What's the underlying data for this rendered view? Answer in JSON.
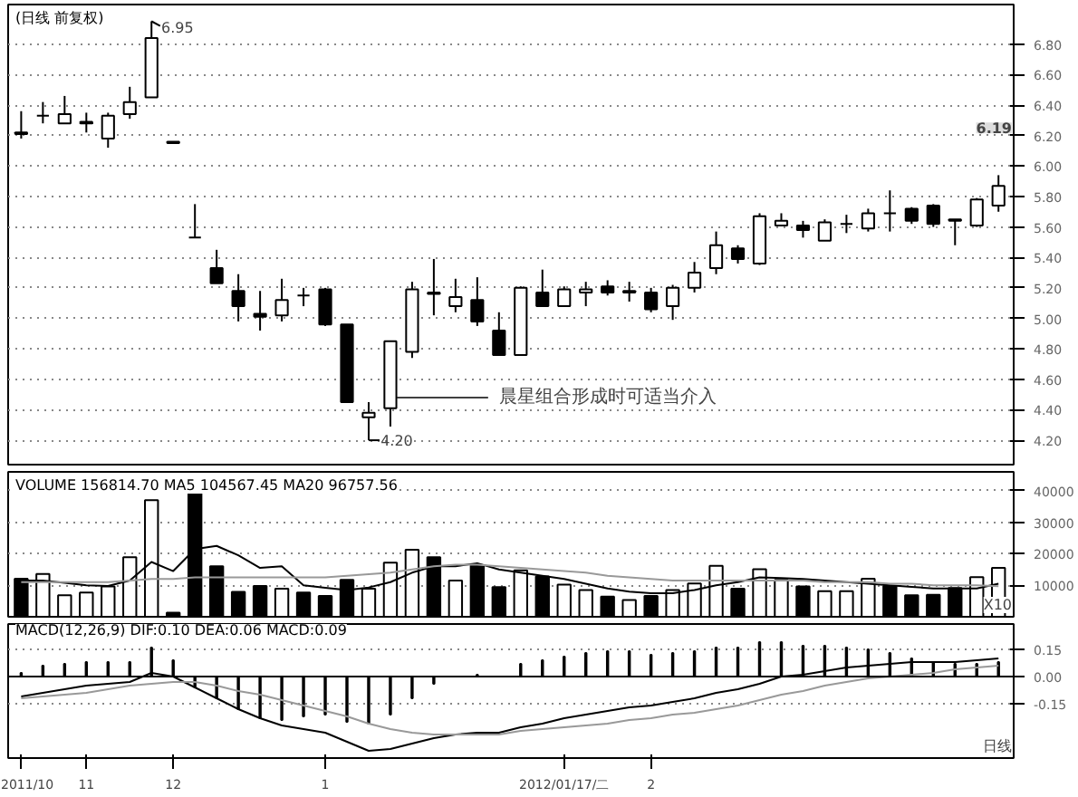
{
  "chart_data": [
    {
      "type": "candlestick",
      "title": "(日线 前复权)",
      "tick_labels": "y",
      "grid": "y",
      "ylim": [
        4.04,
        7.06
      ],
      "yticks": [
        {
          "value": 4.2,
          "label": "4.20"
        },
        {
          "value": 4.4,
          "label": "4.40"
        },
        {
          "value": 4.6,
          "label": "4.60"
        },
        {
          "value": 4.8,
          "label": "4.80"
        },
        {
          "value": 5,
          "label": "5.00"
        },
        {
          "value": 5.2,
          "label": "5.20"
        },
        {
          "value": 5.4,
          "label": "5.40"
        },
        {
          "value": 5.6,
          "label": "5.60"
        },
        {
          "value": 5.8,
          "label": "5.80"
        },
        {
          "value": 6,
          "label": "6.00"
        },
        {
          "value": 6.2,
          "label": "6.20"
        },
        {
          "value": 6.4,
          "label": "6.40"
        },
        {
          "value": 6.6,
          "label": "6.60"
        },
        {
          "value": 6.8,
          "label": "6.80"
        }
      ],
      "categories": [
        null,
        null,
        null,
        null,
        null,
        null,
        null,
        null,
        null,
        null,
        null,
        null,
        null,
        null,
        null,
        null,
        null,
        null,
        null,
        null,
        null,
        null,
        null,
        null,
        null,
        null,
        null,
        null,
        null,
        null,
        null,
        null,
        null,
        null,
        null,
        null,
        null,
        null,
        null,
        null,
        null,
        null,
        null,
        null,
        null,
        null
      ],
      "ohlc": [
        [
          6.22,
          6.36,
          6.18,
          6.21
        ],
        [
          6.33,
          6.42,
          6.28,
          6.33
        ],
        [
          6.28,
          6.46,
          6.28,
          6.34
        ],
        [
          6.28,
          6.35,
          6.22,
          6.29
        ],
        [
          6.18,
          6.35,
          6.12,
          6.33
        ],
        [
          6.34,
          6.52,
          6.31,
          6.42
        ],
        [
          6.45,
          6.95,
          6.45,
          6.84
        ],
        [
          6.16,
          6.16,
          6.15,
          6.15
        ],
        [
          5.53,
          5.75,
          5.53,
          5.53
        ],
        [
          5.33,
          5.45,
          5.23,
          5.23
        ],
        [
          5.18,
          5.29,
          4.98,
          5.08
        ],
        [
          5.03,
          5.18,
          4.92,
          5.01
        ],
        [
          5.02,
          5.26,
          4.98,
          5.12
        ],
        [
          5.15,
          5.2,
          5.08,
          5.15
        ],
        [
          5.19,
          5.2,
          4.95,
          4.96
        ],
        [
          4.96,
          4.96,
          4.45,
          4.45
        ],
        [
          4.35,
          4.45,
          4.2,
          4.38
        ],
        [
          4.41,
          4.85,
          4.29,
          4.85
        ],
        [
          4.78,
          5.24,
          4.74,
          5.19
        ],
        [
          5.17,
          5.39,
          5.02,
          5.16
        ],
        [
          5.08,
          5.26,
          5.04,
          5.14
        ],
        [
          5.12,
          5.27,
          4.95,
          4.98
        ],
        [
          4.92,
          5.04,
          4.76,
          4.76
        ],
        [
          4.76,
          5.21,
          4.76,
          5.2
        ],
        [
          5.17,
          5.32,
          5.08,
          5.08
        ],
        [
          5.08,
          5.21,
          5.08,
          5.19
        ],
        [
          5.17,
          5.24,
          5.08,
          5.19
        ],
        [
          5.21,
          5.25,
          5.15,
          5.17
        ],
        [
          5.17,
          5.24,
          5.11,
          5.18
        ],
        [
          5.17,
          5.2,
          5.04,
          5.06
        ],
        [
          5.08,
          5.22,
          4.99,
          5.2
        ],
        [
          5.2,
          5.37,
          5.17,
          5.3
        ],
        [
          5.33,
          5.57,
          5.29,
          5.48
        ],
        [
          5.46,
          5.48,
          5.36,
          5.39
        ],
        [
          5.36,
          5.69,
          5.35,
          5.67
        ],
        [
          5.61,
          5.69,
          5.61,
          5.64
        ],
        [
          5.61,
          5.64,
          5.53,
          5.58
        ],
        [
          5.51,
          5.65,
          5.51,
          5.63
        ],
        [
          5.62,
          5.68,
          5.56,
          5.62
        ],
        [
          5.59,
          5.72,
          5.57,
          5.69
        ],
        [
          5.69,
          5.84,
          5.57,
          5.69
        ],
        [
          5.72,
          5.73,
          5.62,
          5.64
        ],
        [
          5.74,
          5.75,
          5.6,
          5.62
        ],
        [
          5.65,
          5.65,
          5.48,
          5.64
        ],
        [
          5.61,
          5.79,
          5.6,
          5.78
        ],
        [
          5.74,
          5.94,
          5.7,
          5.87
        ]
      ],
      "colors": [
        "#000000",
        "#000000",
        "#ffffff",
        "#ffffff",
        "#ffffff",
        "#ffffff",
        "#ffffff",
        "#000000",
        "#000000",
        "#000000",
        "#000000",
        "#000000",
        "#ffffff",
        "#000000",
        "#000000",
        "#000000",
        "#ffffff",
        "#ffffff",
        "#ffffff",
        "#000000",
        "#ffffff",
        "#000000",
        "#000000",
        "#ffffff",
        "#000000",
        "#ffffff",
        "#ffffff",
        "#000000",
        "#ffffff",
        "#000000",
        "#ffffff",
        "#ffffff",
        "#ffffff",
        "#000000",
        "#ffffff",
        "#ffffff",
        "#000000",
        "#ffffff",
        "#000000",
        "#ffffff",
        "#000000",
        "#000000",
        "#000000",
        "#000000",
        "#ffffff",
        "#ffffff"
      ],
      "annotations": [
        "6.95",
        "4.20",
        "晨星组合形成时可适当介入",
        "6.19"
      ]
    },
    {
      "type": "bar",
      "title": "VOLUME 156814.70 MA5 104567.45 MA20 96757.56",
      "tick_labels": "y",
      "grid": "y",
      "ylim": [
        0,
        46000
      ],
      "yticks": [
        10000,
        20000,
        30000,
        40000
      ],
      "annotations": [
        "X10"
      ],
      "categories": [
        null,
        null,
        null,
        null,
        null,
        null,
        null,
        null,
        null,
        null,
        null,
        null,
        null,
        null,
        null,
        null,
        null,
        null,
        null,
        null,
        null,
        null,
        null,
        null,
        null,
        null,
        null,
        null,
        null,
        null,
        null,
        null,
        null,
        null,
        null,
        null,
        null,
        null,
        null,
        null,
        null,
        null,
        null,
        null,
        null,
        null
      ],
      "series": [
        {
          "type": "bar",
          "values": [
            12100,
            13600,
            6800,
            7700,
            9600,
            18900,
            37000,
            1300,
            39400,
            16000,
            7900,
            9800,
            8900,
            7700,
            6600,
            11700,
            8900,
            17200,
            21300,
            18900,
            11500,
            16400,
            9400,
            14700,
            12800,
            10200,
            8500,
            6400,
            5300,
            6600,
            8500,
            10600,
            16200,
            8900,
            15100,
            11700,
            9600,
            8100,
            8100,
            12100,
            9800,
            6800,
            7000,
            9100,
            12600,
            15500
          ],
          "colors": [
            "#000000",
            "#ffffff",
            "#ffffff",
            "#ffffff",
            "#ffffff",
            "#ffffff",
            "#ffffff",
            "#000000",
            "#000000",
            "#000000",
            "#000000",
            "#000000",
            "#ffffff",
            "#000000",
            "#000000",
            "#000000",
            "#ffffff",
            "#ffffff",
            "#ffffff",
            "#000000",
            "#ffffff",
            "#000000",
            "#000000",
            "#ffffff",
            "#000000",
            "#ffffff",
            "#ffffff",
            "#000000",
            "#ffffff",
            "#000000",
            "#ffffff",
            "#ffffff",
            "#ffffff",
            "#000000",
            "#ffffff",
            "#ffffff",
            "#000000",
            "#ffffff",
            "#ffffff",
            "#ffffff",
            "#000000",
            "#000000",
            "#000000",
            "#000000",
            "#ffffff",
            "#ffffff"
          ]
        },
        {
          "type": "line",
          "color": "#000000",
          "values": [
            11500,
            11500,
            10800,
            10000,
            9800,
            11500,
            17400,
            14500,
            21500,
            22500,
            19500,
            15500,
            16000,
            10000,
            9200,
            8500,
            9300,
            11000,
            14000,
            16000,
            16000,
            17000,
            15000,
            14000,
            13000,
            12000,
            10500,
            9000,
            8000,
            7500,
            7500,
            8500,
            10000,
            11000,
            12500,
            12300,
            12000,
            11500,
            11000,
            10500,
            10000,
            9500,
            9000,
            9000,
            9000,
            10500
          ]
        },
        {
          "type": "line",
          "color": "#999999",
          "values": [
            11000,
            11000,
            11000,
            11000,
            11000,
            11500,
            12000,
            12000,
            12500,
            12500,
            12500,
            12500,
            12500,
            12500,
            12500,
            13000,
            13500,
            14000,
            15000,
            16000,
            16500,
            16500,
            16000,
            15500,
            15000,
            14500,
            14000,
            13000,
            12500,
            12000,
            11500,
            11500,
            11500,
            11500,
            11500,
            11500,
            11500,
            11000,
            11000,
            11000,
            10500,
            10500,
            10000,
            10000,
            10000,
            9700
          ]
        }
      ]
    },
    {
      "type": "bar",
      "title": "MACD(12,26,9) DIF:0.10 DEA:0.06 MACD:0.09",
      "grid": "y",
      "ylim": [
        -0.45,
        0.29
      ],
      "yticks": [
        0.15,
        {
          "value": 0,
          "label": "0.00"
        },
        -0.15
      ],
      "annotations": [
        "日线"
      ],
      "categories": [
        "2011/10",
        null,
        null,
        "11",
        null,
        null,
        null,
        "12",
        null,
        null,
        null,
        null,
        null,
        null,
        "1",
        null,
        null,
        null,
        null,
        null,
        null,
        null,
        null,
        null,
        null,
        "2012/01/17/二",
        null,
        null,
        null,
        "2",
        null,
        null,
        null,
        null,
        null,
        null,
        null,
        null,
        null,
        null,
        null,
        null,
        null,
        null,
        null,
        null
      ],
      "series": [
        {
          "type": "bar",
          "color": "#000000",
          "values": [
            0.02,
            0.06,
            0.07,
            0.08,
            0.08,
            0.08,
            0.16,
            0.09,
            -0.06,
            -0.12,
            -0.18,
            -0.23,
            -0.24,
            -0.22,
            -0.21,
            -0.25,
            -0.26,
            -0.21,
            -0.12,
            -0.04,
            0,
            0.01,
            0,
            0.07,
            0.09,
            0.11,
            0.13,
            0.14,
            0.14,
            0.12,
            0.13,
            0.14,
            0.16,
            0.16,
            0.19,
            0.19,
            0.17,
            0.17,
            0.16,
            0.15,
            0.13,
            0.1,
            0.08,
            0.07,
            0.07,
            0.08
          ]
        },
        {
          "type": "line",
          "color": "#000000",
          "values": [
            -0.11,
            -0.09,
            -0.07,
            -0.05,
            -0.04,
            -0.03,
            0.02,
            0,
            -0.06,
            -0.12,
            -0.18,
            -0.23,
            -0.27,
            -0.29,
            -0.31,
            -0.36,
            -0.41,
            -0.4,
            -0.37,
            -0.34,
            -0.32,
            -0.31,
            -0.31,
            -0.28,
            -0.26,
            -0.23,
            -0.21,
            -0.19,
            -0.17,
            -0.16,
            -0.14,
            -0.12,
            -0.09,
            -0.07,
            -0.04,
            0,
            0.01,
            0.03,
            0.05,
            0.06,
            0.07,
            0.08,
            0.08,
            0.08,
            0.09,
            0.1
          ]
        },
        {
          "type": "line",
          "color": "#999999",
          "values": [
            -0.12,
            -0.11,
            -0.1,
            -0.09,
            -0.07,
            -0.05,
            -0.04,
            -0.03,
            -0.03,
            -0.05,
            -0.08,
            -0.1,
            -0.13,
            -0.16,
            -0.19,
            -0.22,
            -0.26,
            -0.29,
            -0.31,
            -0.32,
            -0.32,
            -0.32,
            -0.32,
            -0.3,
            -0.29,
            -0.28,
            -0.27,
            -0.26,
            -0.24,
            -0.23,
            -0.21,
            -0.2,
            -0.18,
            -0.16,
            -0.13,
            -0.1,
            -0.08,
            -0.05,
            -0.03,
            -0.01,
            0,
            0.01,
            0.02,
            0.04,
            0.05,
            0.06
          ]
        }
      ]
    }
  ]
}
